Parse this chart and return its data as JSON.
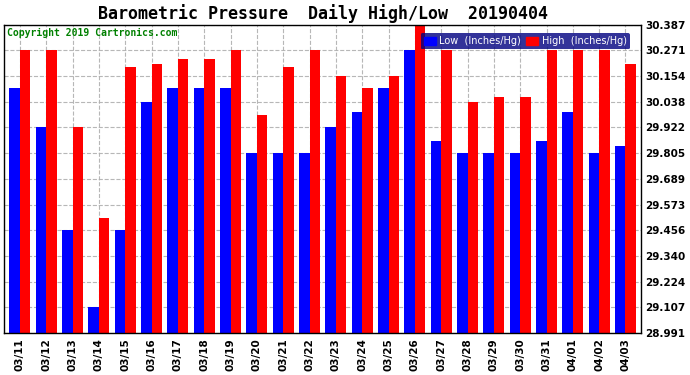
{
  "title": "Barometric Pressure  Daily High/Low  20190404",
  "copyright": "Copyright 2019 Cartronics.com",
  "legend_low": "Low  (Inches/Hg)",
  "legend_high": "High  (Inches/Hg)",
  "dates": [
    "03/11",
    "03/12",
    "03/13",
    "03/14",
    "03/15",
    "03/16",
    "03/17",
    "03/18",
    "03/19",
    "03/20",
    "03/21",
    "03/22",
    "03/23",
    "03/24",
    "03/25",
    "03/26",
    "03/27",
    "03/28",
    "03/29",
    "03/30",
    "03/31",
    "04/01",
    "04/02",
    "04/03"
  ],
  "low_values": [
    30.1,
    29.922,
    29.456,
    29.107,
    29.456,
    30.038,
    30.1,
    30.1,
    30.1,
    29.805,
    29.805,
    29.805,
    29.922,
    29.99,
    30.1,
    30.271,
    29.86,
    29.805,
    29.805,
    29.805,
    29.86,
    29.99,
    29.805,
    29.84
  ],
  "high_values": [
    30.271,
    30.271,
    29.922,
    29.51,
    30.195,
    30.21,
    30.232,
    30.232,
    30.271,
    29.98,
    30.194,
    30.271,
    30.154,
    30.1,
    30.154,
    30.387,
    30.271,
    30.038,
    30.06,
    30.06,
    30.271,
    30.271,
    30.271,
    30.21
  ],
  "ylim_min": 28.991,
  "ylim_max": 30.387,
  "yticks": [
    28.991,
    29.107,
    29.224,
    29.34,
    29.456,
    29.573,
    29.689,
    29.805,
    29.922,
    30.038,
    30.154,
    30.271,
    30.387
  ],
  "bar_color_low": "#0000ff",
  "bar_color_high": "#ff0000",
  "background_color": "#ffffff",
  "grid_color": "#b0b0b0",
  "title_fontsize": 12,
  "tick_fontsize": 7.5,
  "copyright_fontsize": 7,
  "copyright_color": "#008000"
}
